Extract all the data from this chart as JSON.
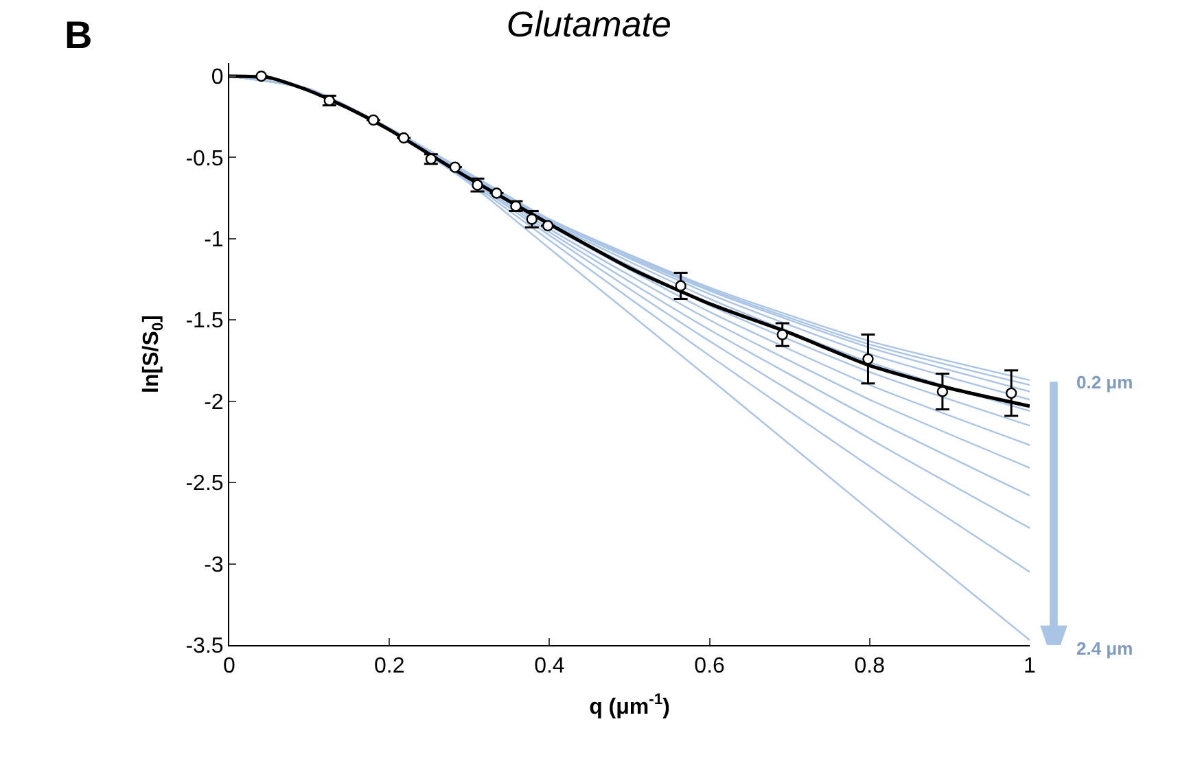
{
  "chart_data": {
    "type": "line",
    "title": "Glutamate",
    "xlabel": "q (μm$^{-1}$)",
    "ylabel": "ln[S/S$_{0}$]",
    "annotations": [
      "B",
      "0.2 μm",
      "2.4 μm"
    ],
    "xlim": [
      0,
      1
    ],
    "ylim": [
      -3.5,
      0.08
    ],
    "xticks": [
      0,
      0.2,
      0.4,
      0.6,
      0.8,
      1
    ],
    "yticks": [
      -3.5,
      -3,
      -2.5,
      -2,
      -1.5,
      -1,
      -0.5,
      0
    ],
    "series": [
      {
        "color": "#aac4e6",
        "x": [
          0,
          0.1,
          0.2,
          0.3,
          0.4,
          0.6,
          0.8,
          1.0
        ],
        "values": [
          0,
          -0.08,
          -0.32,
          -0.6,
          -0.88,
          -1.3,
          -1.63,
          -1.87
        ]
      },
      {
        "color": "#aac4e6",
        "x": [
          0,
          0.1,
          0.2,
          0.3,
          0.4,
          0.6,
          0.8,
          1.0
        ],
        "values": [
          0,
          -0.08,
          -0.32,
          -0.6,
          -0.88,
          -1.31,
          -1.65,
          -1.9
        ]
      },
      {
        "color": "#aac4e6",
        "x": [
          0,
          0.1,
          0.2,
          0.3,
          0.4,
          0.6,
          0.8,
          1.0
        ],
        "values": [
          0,
          -0.08,
          -0.32,
          -0.6,
          -0.89,
          -1.32,
          -1.67,
          -1.94
        ]
      },
      {
        "color": "#aac4e6",
        "x": [
          0,
          0.1,
          0.2,
          0.3,
          0.4,
          0.6,
          0.8,
          1.0
        ],
        "values": [
          0,
          -0.08,
          -0.32,
          -0.6,
          -0.89,
          -1.34,
          -1.71,
          -1.99
        ]
      },
      {
        "color": "#aac4e6",
        "x": [
          0,
          0.1,
          0.2,
          0.3,
          0.4,
          0.6,
          0.8,
          1.0
        ],
        "values": [
          0,
          -0.08,
          -0.32,
          -0.61,
          -0.9,
          -1.37,
          -1.76,
          -2.06
        ]
      },
      {
        "color": "#aac4e6",
        "x": [
          0,
          0.1,
          0.2,
          0.3,
          0.4,
          0.6,
          0.8,
          1.0
        ],
        "values": [
          0,
          -0.08,
          -0.32,
          -0.61,
          -0.91,
          -1.41,
          -1.82,
          -2.15
        ]
      },
      {
        "color": "#aac4e6",
        "x": [
          0,
          0.1,
          0.2,
          0.3,
          0.4,
          0.6,
          0.8,
          1.0
        ],
        "values": [
          0,
          -0.08,
          -0.32,
          -0.62,
          -0.92,
          -1.45,
          -1.9,
          -2.27
        ]
      },
      {
        "color": "#aac4e6",
        "x": [
          0,
          0.1,
          0.2,
          0.3,
          0.4,
          0.6,
          0.8,
          1.0
        ],
        "values": [
          0,
          -0.08,
          -0.33,
          -0.62,
          -0.94,
          -1.5,
          -1.99,
          -2.41
        ]
      },
      {
        "color": "#aac4e6",
        "x": [
          0,
          0.1,
          0.2,
          0.3,
          0.4,
          0.6,
          0.8,
          1.0
        ],
        "values": [
          0,
          -0.08,
          -0.33,
          -0.63,
          -0.96,
          -1.56,
          -2.1,
          -2.58
        ]
      },
      {
        "color": "#aac4e6",
        "x": [
          0,
          0.1,
          0.2,
          0.3,
          0.4,
          0.6,
          0.8,
          1.0
        ],
        "values": [
          0,
          -0.08,
          -0.33,
          -0.64,
          -0.98,
          -1.63,
          -2.23,
          -2.78
        ]
      },
      {
        "color": "#aac4e6",
        "x": [
          0,
          0.1,
          0.2,
          0.3,
          0.4,
          0.6,
          0.8,
          1.0
        ],
        "values": [
          0,
          -0.08,
          -0.33,
          -0.65,
          -1.01,
          -1.72,
          -2.4,
          -3.05
        ]
      },
      {
        "color": "#aac4e6",
        "x": [
          0,
          0.1,
          0.2,
          0.3,
          0.4,
          0.6,
          0.8,
          1.0
        ],
        "values": [
          0,
          -0.08,
          -0.33,
          -0.66,
          -1.06,
          -1.86,
          -2.67,
          -3.47
        ]
      },
      {
        "color": "#000000",
        "x": [
          0,
          0.05,
          0.1,
          0.15,
          0.2,
          0.25,
          0.3,
          0.35,
          0.4,
          0.5,
          0.6,
          0.7,
          0.8,
          0.9,
          1.0
        ],
        "values": [
          0,
          -0.01,
          -0.09,
          -0.2,
          -0.33,
          -0.48,
          -0.63,
          -0.77,
          -0.91,
          -1.18,
          -1.4,
          -1.58,
          -1.78,
          -1.92,
          -2.03
        ]
      },
      {
        "type": "scatter",
        "color": "#000000",
        "marker": "circle",
        "x": [
          0.04,
          0.125,
          0.18,
          0.218,
          0.252,
          0.282,
          0.31,
          0.334,
          0.358,
          0.378,
          0.398,
          0.564,
          0.691,
          0.798,
          0.891,
          0.977
        ],
        "values": [
          0,
          -0.15,
          -0.27,
          -0.38,
          -0.51,
          -0.56,
          -0.67,
          -0.72,
          -0.8,
          -0.88,
          -0.92,
          -1.29,
          -1.59,
          -1.74,
          -1.94,
          -1.95
        ],
        "errors": [
          null,
          0.03,
          null,
          null,
          0.03,
          null,
          0.04,
          null,
          0.03,
          0.05,
          null,
          0.08,
          0.07,
          0.15,
          0.11,
          0.14
        ]
      }
    ]
  }
}
